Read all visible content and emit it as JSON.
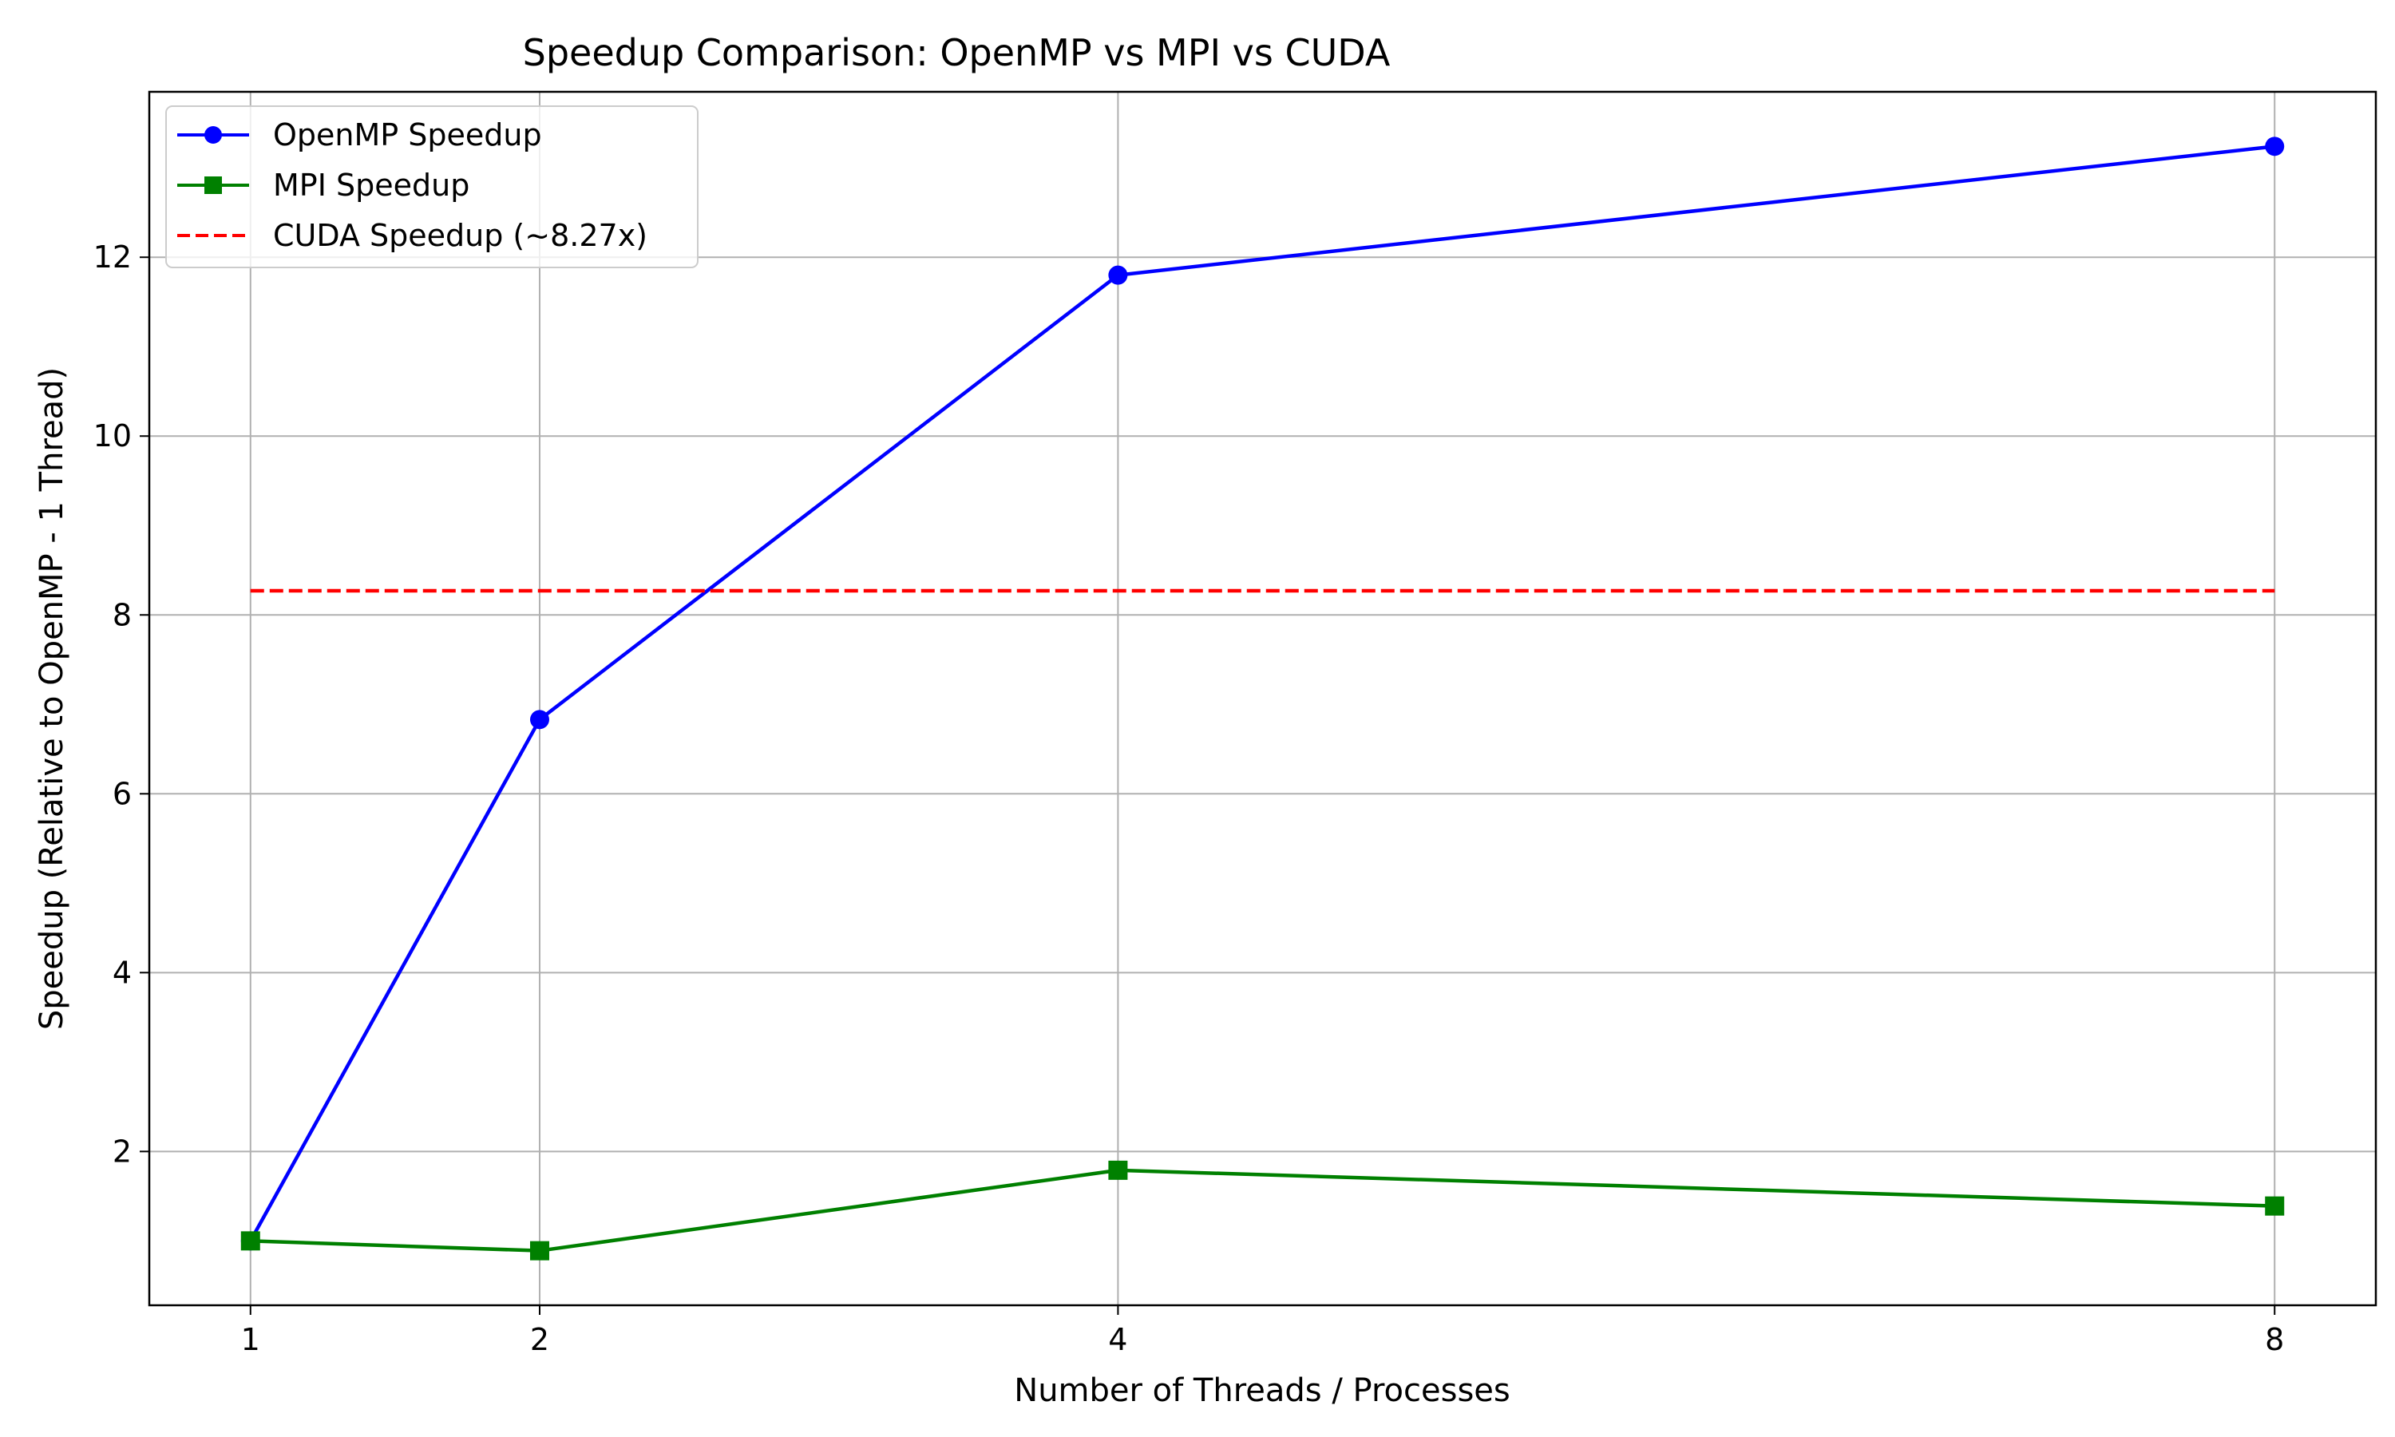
{
  "chart_data": {
    "type": "line",
    "title": "Speedup Comparison: OpenMP vs MPI vs CUDA",
    "xlabel": "Number of Threads / Processes",
    "ylabel": "Speedup (Relative to OpenMP - 1 Thread)",
    "x": [
      1,
      2,
      4,
      8
    ],
    "x_ticks": [
      1,
      2,
      4,
      8
    ],
    "y_ticks": [
      2,
      4,
      6,
      8,
      10,
      12
    ],
    "xlim": [
      0.65,
      8.35
    ],
    "ylim": [
      0.28,
      13.85
    ],
    "grid": true,
    "legend_position": "top-left",
    "series": [
      {
        "name": "OpenMP Speedup",
        "values": [
          1.0,
          6.83,
          11.8,
          13.24
        ],
        "color": "#0000ff",
        "marker": "circle",
        "line_style": "solid"
      },
      {
        "name": "MPI Speedup",
        "values": [
          1.0,
          0.89,
          1.79,
          1.39
        ],
        "color": "#008000",
        "marker": "square",
        "line_style": "solid"
      },
      {
        "name": "CUDA Speedup (~8.27x)",
        "values": [
          8.27,
          8.27,
          8.27,
          8.27
        ],
        "color": "#ff0000",
        "marker": "none",
        "line_style": "dashed"
      }
    ]
  }
}
